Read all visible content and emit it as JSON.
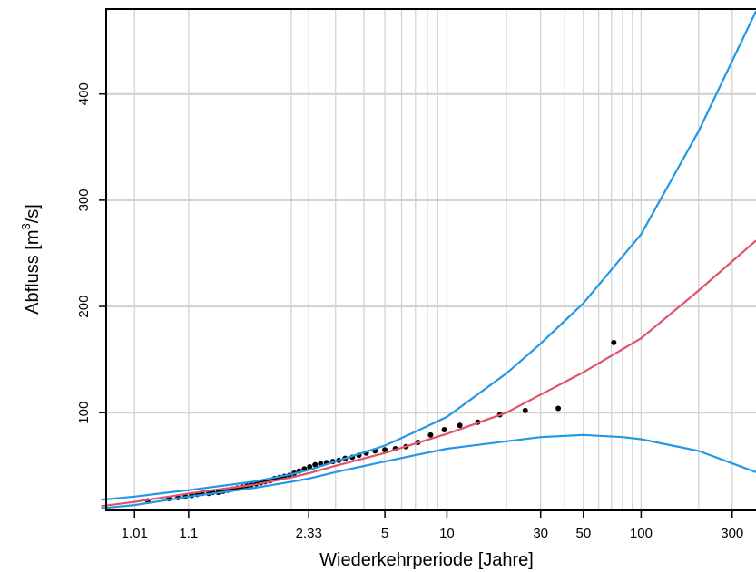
{
  "chart_data": {
    "type": "scatter",
    "title": "",
    "xlabel": "Wiederkehrperiode [Jahre]",
    "ylabel_main": "Abfluss  [m",
    "ylabel_sup": "3",
    "ylabel_tail": "/s]",
    "x_scale": "Gumbel (reduced variate of return period)",
    "xlim": [
      1.0,
      400
    ],
    "ylim": [
      8,
      480
    ],
    "grid": true,
    "x_ticks": [
      {
        "value": 1.01,
        "label": "1.01"
      },
      {
        "value": 1.1,
        "label": "1.1"
      },
      {
        "value": 2.33,
        "label": "2.33"
      },
      {
        "value": 5,
        "label": "5"
      },
      {
        "value": 10,
        "label": "10"
      },
      {
        "value": 30,
        "label": "30"
      },
      {
        "value": 50,
        "label": "50"
      },
      {
        "value": 100,
        "label": "100"
      },
      {
        "value": 300,
        "label": "300"
      }
    ],
    "x_gridlines": [
      1.01,
      1.1,
      2,
      2.33,
      3,
      4,
      5,
      6,
      7,
      8,
      9,
      10,
      20,
      30,
      40,
      50,
      60,
      70,
      80,
      90,
      100,
      200,
      300,
      400
    ],
    "y_ticks": [
      100,
      200,
      300,
      400
    ],
    "series": [
      {
        "kind": "points",
        "color": "#000000",
        "x": [
          1.02,
          1.05,
          1.07,
          1.09,
          1.11,
          1.13,
          1.15,
          1.18,
          1.2,
          1.23,
          1.26,
          1.29,
          1.32,
          1.36,
          1.4,
          1.44,
          1.48,
          1.53,
          1.58,
          1.63,
          1.69,
          1.75,
          1.82,
          1.89,
          1.97,
          2.05,
          2.14,
          2.24,
          2.35,
          2.47,
          2.6,
          2.75,
          2.92,
          3.1,
          3.3,
          3.55,
          3.8,
          4.1,
          4.5,
          5.0,
          5.6,
          6.3,
          7.2,
          8.3,
          9.7,
          11.6,
          14.3,
          18.5,
          25.0,
          37.0,
          72.0
        ],
        "y": [
          17,
          19,
          20,
          21,
          22,
          23,
          24,
          24,
          25,
          25,
          26,
          27,
          28,
          29,
          30,
          31,
          32,
          33,
          34,
          35,
          36,
          38,
          39,
          40,
          41,
          43,
          45,
          47,
          49,
          51,
          52,
          53,
          54,
          55,
          57,
          58,
          60,
          62,
          64,
          65,
          66,
          68,
          72,
          79,
          84,
          88,
          91,
          98,
          102,
          104,
          166
        ]
      },
      {
        "kind": "line",
        "color": "#df536b",
        "x": [
          1.001,
          1.01,
          1.05,
          1.1,
          1.2,
          1.5,
          2.0,
          2.33,
          3.0,
          5.0,
          7.0,
          10.0,
          20.0,
          30.0,
          50.0,
          100.0,
          200.0,
          400.0
        ],
        "y": [
          12,
          16,
          21,
          24,
          27,
          32,
          39,
          43,
          50,
          62,
          71,
          80,
          100,
          117,
          138,
          170,
          215,
          262
        ]
      },
      {
        "kind": "line",
        "color": "#2297e6",
        "x": [
          1.001,
          1.01,
          1.05,
          1.1,
          1.2,
          1.5,
          2.0,
          2.33,
          3.0,
          5.0,
          7.0,
          10.0,
          20.0,
          30.0,
          50.0,
          100.0,
          200.0,
          400.0
        ],
        "y": [
          18,
          21,
          25,
          27,
          30,
          35,
          42,
          46,
          54,
          69,
          82,
          96,
          137,
          165,
          203,
          268,
          365,
          478
        ]
      },
      {
        "kind": "line",
        "color": "#2297e6",
        "x": [
          1.001,
          1.01,
          1.05,
          1.1,
          1.2,
          1.5,
          2.0,
          2.33,
          3.0,
          5.0,
          7.0,
          10.0,
          20.0,
          30.0,
          50.0,
          80.0,
          100.0,
          200.0,
          400.0
        ],
        "y": [
          10,
          13,
          18,
          21,
          24,
          29,
          35,
          38,
          44,
          54,
          60,
          66,
          73,
          77,
          79,
          77,
          75,
          64,
          44
        ]
      }
    ]
  }
}
